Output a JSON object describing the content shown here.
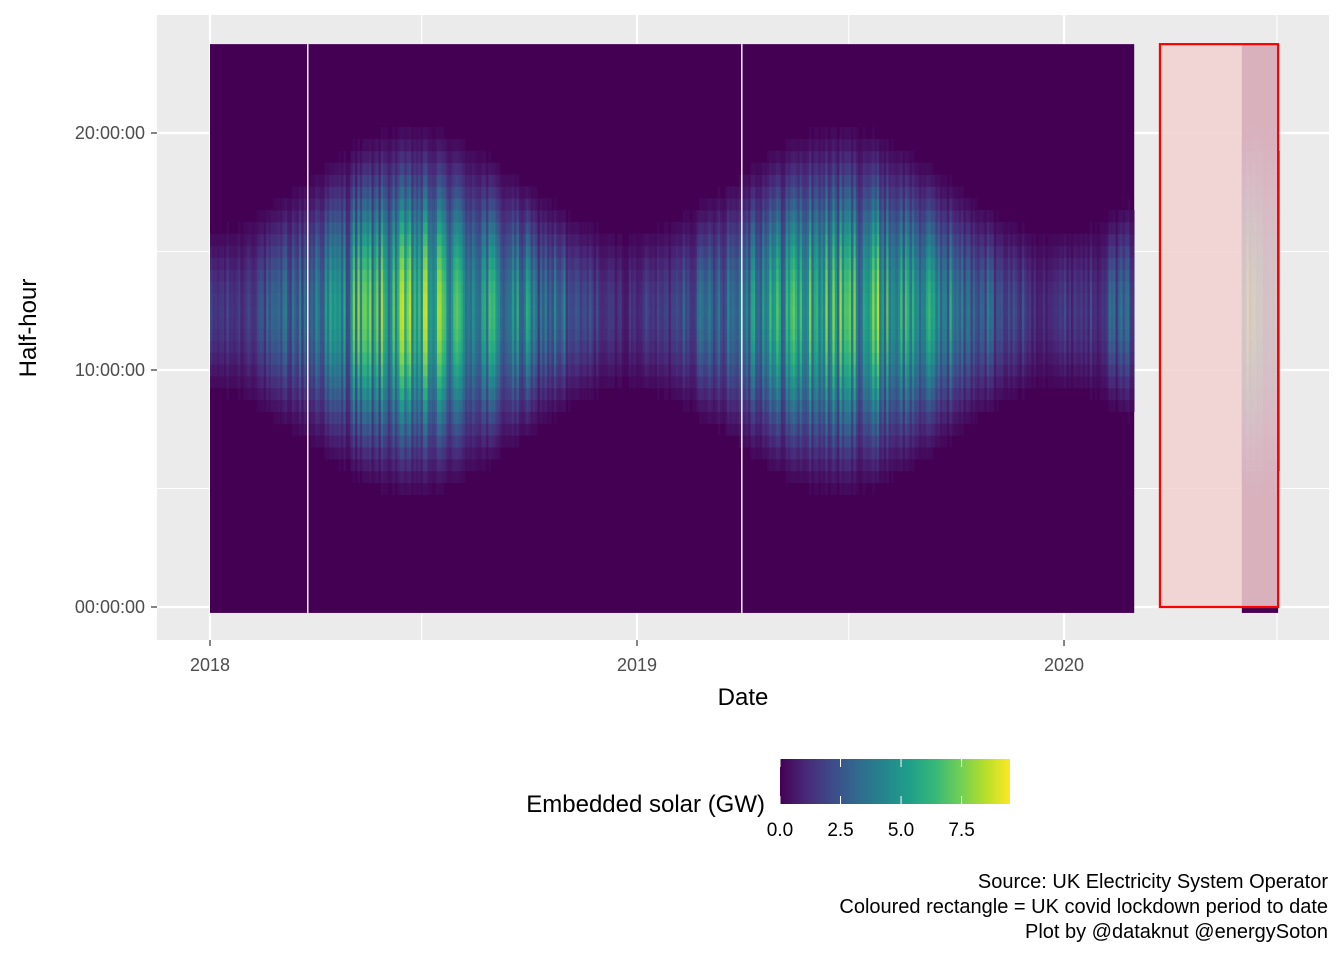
{
  "chart_data": {
    "type": "heatmap",
    "title": "",
    "xlabel": "Date",
    "ylabel": "Half-hour",
    "x_ticks": [
      "2018",
      "2019",
      "2020"
    ],
    "x_range": [
      "2018-01-01",
      "2020-07-02"
    ],
    "y_ticks": [
      "00:00:00",
      "10:00:00",
      "20:00:00"
    ],
    "y_range_hours": [
      0,
      23.5
    ],
    "value_range_gw": [
      0,
      9.5
    ],
    "legend": {
      "title": "Embedded solar (GW)",
      "ticks": [
        0.0,
        2.5,
        5.0,
        7.5
      ],
      "tick_labels": [
        "0.0",
        "2.5",
        "5.0",
        "7.5"
      ],
      "colormap": "viridis",
      "placement": "bottom"
    },
    "data_periods": [
      {
        "start": "2018-01-01",
        "end": "2020-02-29"
      },
      {
        "start": "2020-06-01",
        "end": "2020-07-01"
      }
    ],
    "missing_days": [
      "2018-03-25",
      "2019-03-31"
    ],
    "peak_solar_gw_by_month": [
      {
        "month": "2018-01",
        "peak_gw": 2.2
      },
      {
        "month": "2018-02",
        "peak_gw": 3.4
      },
      {
        "month": "2018-03",
        "peak_gw": 4.5
      },
      {
        "month": "2018-04",
        "peak_gw": 6.2
      },
      {
        "month": "2018-05",
        "peak_gw": 8.4
      },
      {
        "month": "2018-06",
        "peak_gw": 8.8
      },
      {
        "month": "2018-07",
        "peak_gw": 8.9
      },
      {
        "month": "2018-08",
        "peak_gw": 7.2
      },
      {
        "month": "2018-09",
        "peak_gw": 6.0
      },
      {
        "month": "2018-10",
        "peak_gw": 4.8
      },
      {
        "month": "2018-11",
        "peak_gw": 2.9
      },
      {
        "month": "2018-12",
        "peak_gw": 1.8
      },
      {
        "month": "2019-01",
        "peak_gw": 2.3
      },
      {
        "month": "2019-02",
        "peak_gw": 4.0
      },
      {
        "month": "2019-03",
        "peak_gw": 5.2
      },
      {
        "month": "2019-04",
        "peak_gw": 7.2
      },
      {
        "month": "2019-05",
        "peak_gw": 8.2
      },
      {
        "month": "2019-06",
        "peak_gw": 8.3
      },
      {
        "month": "2019-07",
        "peak_gw": 8.5
      },
      {
        "month": "2019-08",
        "peak_gw": 7.6
      },
      {
        "month": "2019-09",
        "peak_gw": 6.5
      },
      {
        "month": "2019-10",
        "peak_gw": 4.5
      },
      {
        "month": "2019-11",
        "peak_gw": 2.8
      },
      {
        "month": "2019-12",
        "peak_gw": 2.0
      },
      {
        "month": "2020-01",
        "peak_gw": 2.4
      },
      {
        "month": "2020-02",
        "peak_gw": 3.8
      },
      {
        "month": "2020-06",
        "peak_gw": 8.6
      }
    ],
    "lockdown_rectangle": {
      "start": "2020-03-23",
      "end": "2020-07-01",
      "y_start_hours": 0,
      "y_end_hours": 23.5,
      "fill": "#f2d0d0",
      "stroke": "#ff0000"
    },
    "colors": {
      "panel_background": "#ebebeb",
      "grid": "#ffffff",
      "viridis_low": "#440154",
      "viridis_high": "#fde725"
    }
  },
  "caption": {
    "line1": "Source: UK Electricity System Operator",
    "line2": "Coloured rectangle = UK covid lockdown period to date",
    "line3": "Plot by @dataknut @energySoton"
  }
}
